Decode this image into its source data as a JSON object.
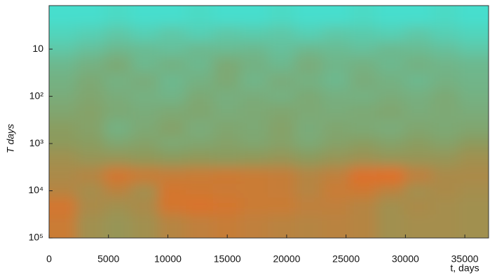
{
  "chart_data": {
    "type": "heatmap",
    "x_label": "t, days",
    "y_label": "T days",
    "xlim": [
      0,
      37000
    ],
    "xticks": [
      0,
      5000,
      10000,
      15000,
      20000,
      25000,
      30000,
      35000
    ],
    "ylim": [
      1.2,
      100000
    ],
    "log_y": true,
    "y_inverted": true,
    "yticks": [
      10,
      {
        "value": 100,
        "label": "10²"
      },
      {
        "value": 1000,
        "label": "10³"
      },
      {
        "value": 10000,
        "label": "10⁴"
      },
      {
        "value": 100000,
        "label": "10⁵"
      }
    ],
    "zlim": [
      0,
      1
    ],
    "colorscale": [
      "#3ee6d9",
      "#8d9a5c",
      "#f2661c"
    ],
    "x": [
      1150,
      3450,
      5750,
      8050,
      10350,
      12650,
      14950,
      17250,
      19550,
      21850,
      24150,
      26450,
      28750,
      31050,
      33350,
      35650
    ],
    "y": [
      2,
      5,
      10,
      20,
      50,
      100,
      200,
      500,
      1000,
      2000,
      5000,
      10000,
      20000,
      50000
    ],
    "z": [
      [
        0.05,
        0.05,
        0.08,
        0.05,
        0.05,
        0.08,
        0.05,
        0.05,
        0.08,
        0.05,
        0.05,
        0.08,
        0.05,
        0.05,
        0.08,
        0.05
      ],
      [
        0.12,
        0.15,
        0.2,
        0.15,
        0.2,
        0.15,
        0.2,
        0.18,
        0.2,
        0.15,
        0.2,
        0.18,
        0.15,
        0.2,
        0.15,
        0.12
      ],
      [
        0.2,
        0.25,
        0.3,
        0.28,
        0.25,
        0.3,
        0.28,
        0.3,
        0.25,
        0.3,
        0.28,
        0.25,
        0.3,
        0.28,
        0.25,
        0.2
      ],
      [
        0.3,
        0.35,
        0.4,
        0.3,
        0.35,
        0.3,
        0.4,
        0.35,
        0.3,
        0.38,
        0.32,
        0.35,
        0.3,
        0.35,
        0.32,
        0.3
      ],
      [
        0.35,
        0.4,
        0.35,
        0.38,
        0.3,
        0.35,
        0.4,
        0.32,
        0.38,
        0.35,
        0.3,
        0.38,
        0.35,
        0.3,
        0.35,
        0.32
      ],
      [
        0.38,
        0.42,
        0.38,
        0.35,
        0.33,
        0.4,
        0.36,
        0.38,
        0.35,
        0.4,
        0.36,
        0.35,
        0.38,
        0.36,
        0.4,
        0.35
      ],
      [
        0.42,
        0.45,
        0.4,
        0.38,
        0.4,
        0.42,
        0.38,
        0.4,
        0.42,
        0.4,
        0.38,
        0.4,
        0.42,
        0.38,
        0.4,
        0.38
      ],
      [
        0.48,
        0.45,
        0.35,
        0.4,
        0.45,
        0.38,
        0.42,
        0.4,
        0.45,
        0.38,
        0.42,
        0.4,
        0.38,
        0.42,
        0.4,
        0.42
      ],
      [
        0.5,
        0.48,
        0.42,
        0.45,
        0.4,
        0.42,
        0.45,
        0.42,
        0.45,
        0.4,
        0.45,
        0.48,
        0.45,
        0.48,
        0.45,
        0.5
      ],
      [
        0.6,
        0.55,
        0.55,
        0.52,
        0.5,
        0.52,
        0.5,
        0.52,
        0.55,
        0.5,
        0.55,
        0.58,
        0.55,
        0.55,
        0.55,
        0.6
      ],
      [
        0.65,
        0.7,
        0.85,
        0.8,
        0.78,
        0.8,
        0.82,
        0.8,
        0.78,
        0.7,
        0.75,
        0.9,
        0.92,
        0.75,
        0.65,
        0.65
      ],
      [
        0.7,
        0.62,
        0.72,
        0.6,
        0.85,
        0.82,
        0.8,
        0.8,
        0.78,
        0.7,
        0.8,
        0.82,
        0.72,
        0.6,
        0.65,
        0.62
      ],
      [
        0.85,
        0.65,
        0.6,
        0.65,
        0.85,
        0.88,
        0.85,
        0.8,
        0.8,
        0.75,
        0.75,
        0.7,
        0.6,
        0.65,
        0.62,
        0.6
      ],
      [
        0.8,
        0.6,
        0.55,
        0.6,
        0.7,
        0.75,
        0.78,
        0.75,
        0.72,
        0.7,
        0.72,
        0.7,
        0.6,
        0.62,
        0.62,
        0.6
      ]
    ]
  }
}
